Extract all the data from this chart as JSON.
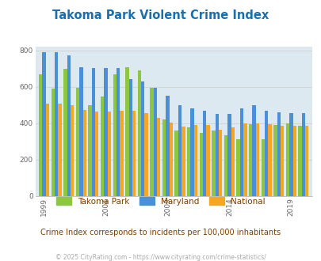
{
  "title": "Takoma Park Violent Crime Index",
  "title_color": "#1a6faf",
  "subtitle": "Crime Index corresponds to incidents per 100,000 inhabitants",
  "subtitle_color": "#7b3f00",
  "copyright": "© 2025 CityRating.com - https://www.cityrating.com/crime-statistics/",
  "copyright_color": "#aaaaaa",
  "plot_bg_color": "#dce9f0",
  "outer_bg_color": "#ffffff",
  "years": [
    1999,
    2000,
    2001,
    2002,
    2003,
    2004,
    2005,
    2006,
    2007,
    2008,
    2009,
    2010,
    2011,
    2012,
    2013,
    2014,
    2015,
    2016,
    2017,
    2018,
    2019,
    2020
  ],
  "takoma_park": [
    670,
    590,
    700,
    595,
    500,
    545,
    670,
    710,
    690,
    595,
    420,
    360,
    375,
    345,
    360,
    335,
    310,
    395,
    310,
    390,
    400,
    385
  ],
  "maryland": [
    790,
    790,
    775,
    710,
    705,
    705,
    705,
    645,
    630,
    595,
    550,
    500,
    480,
    470,
    450,
    450,
    480,
    500,
    470,
    460,
    455,
    455
  ],
  "national": [
    510,
    510,
    500,
    475,
    465,
    465,
    470,
    470,
    455,
    430,
    405,
    380,
    390,
    390,
    365,
    375,
    400,
    400,
    395,
    385,
    385,
    385
  ],
  "bar_width": 0.28,
  "color_takoma": "#8dc63f",
  "color_maryland": "#4a90d9",
  "color_national": "#f5a623",
  "ylim": [
    0,
    820
  ],
  "yticks": [
    0,
    200,
    400,
    600,
    800
  ],
  "xlabel_years": [
    1999,
    2004,
    2009,
    2014,
    2019
  ],
  "grid_color": "#cccccc",
  "legend_labels": [
    "Takoma Park",
    "Maryland",
    "National"
  ]
}
